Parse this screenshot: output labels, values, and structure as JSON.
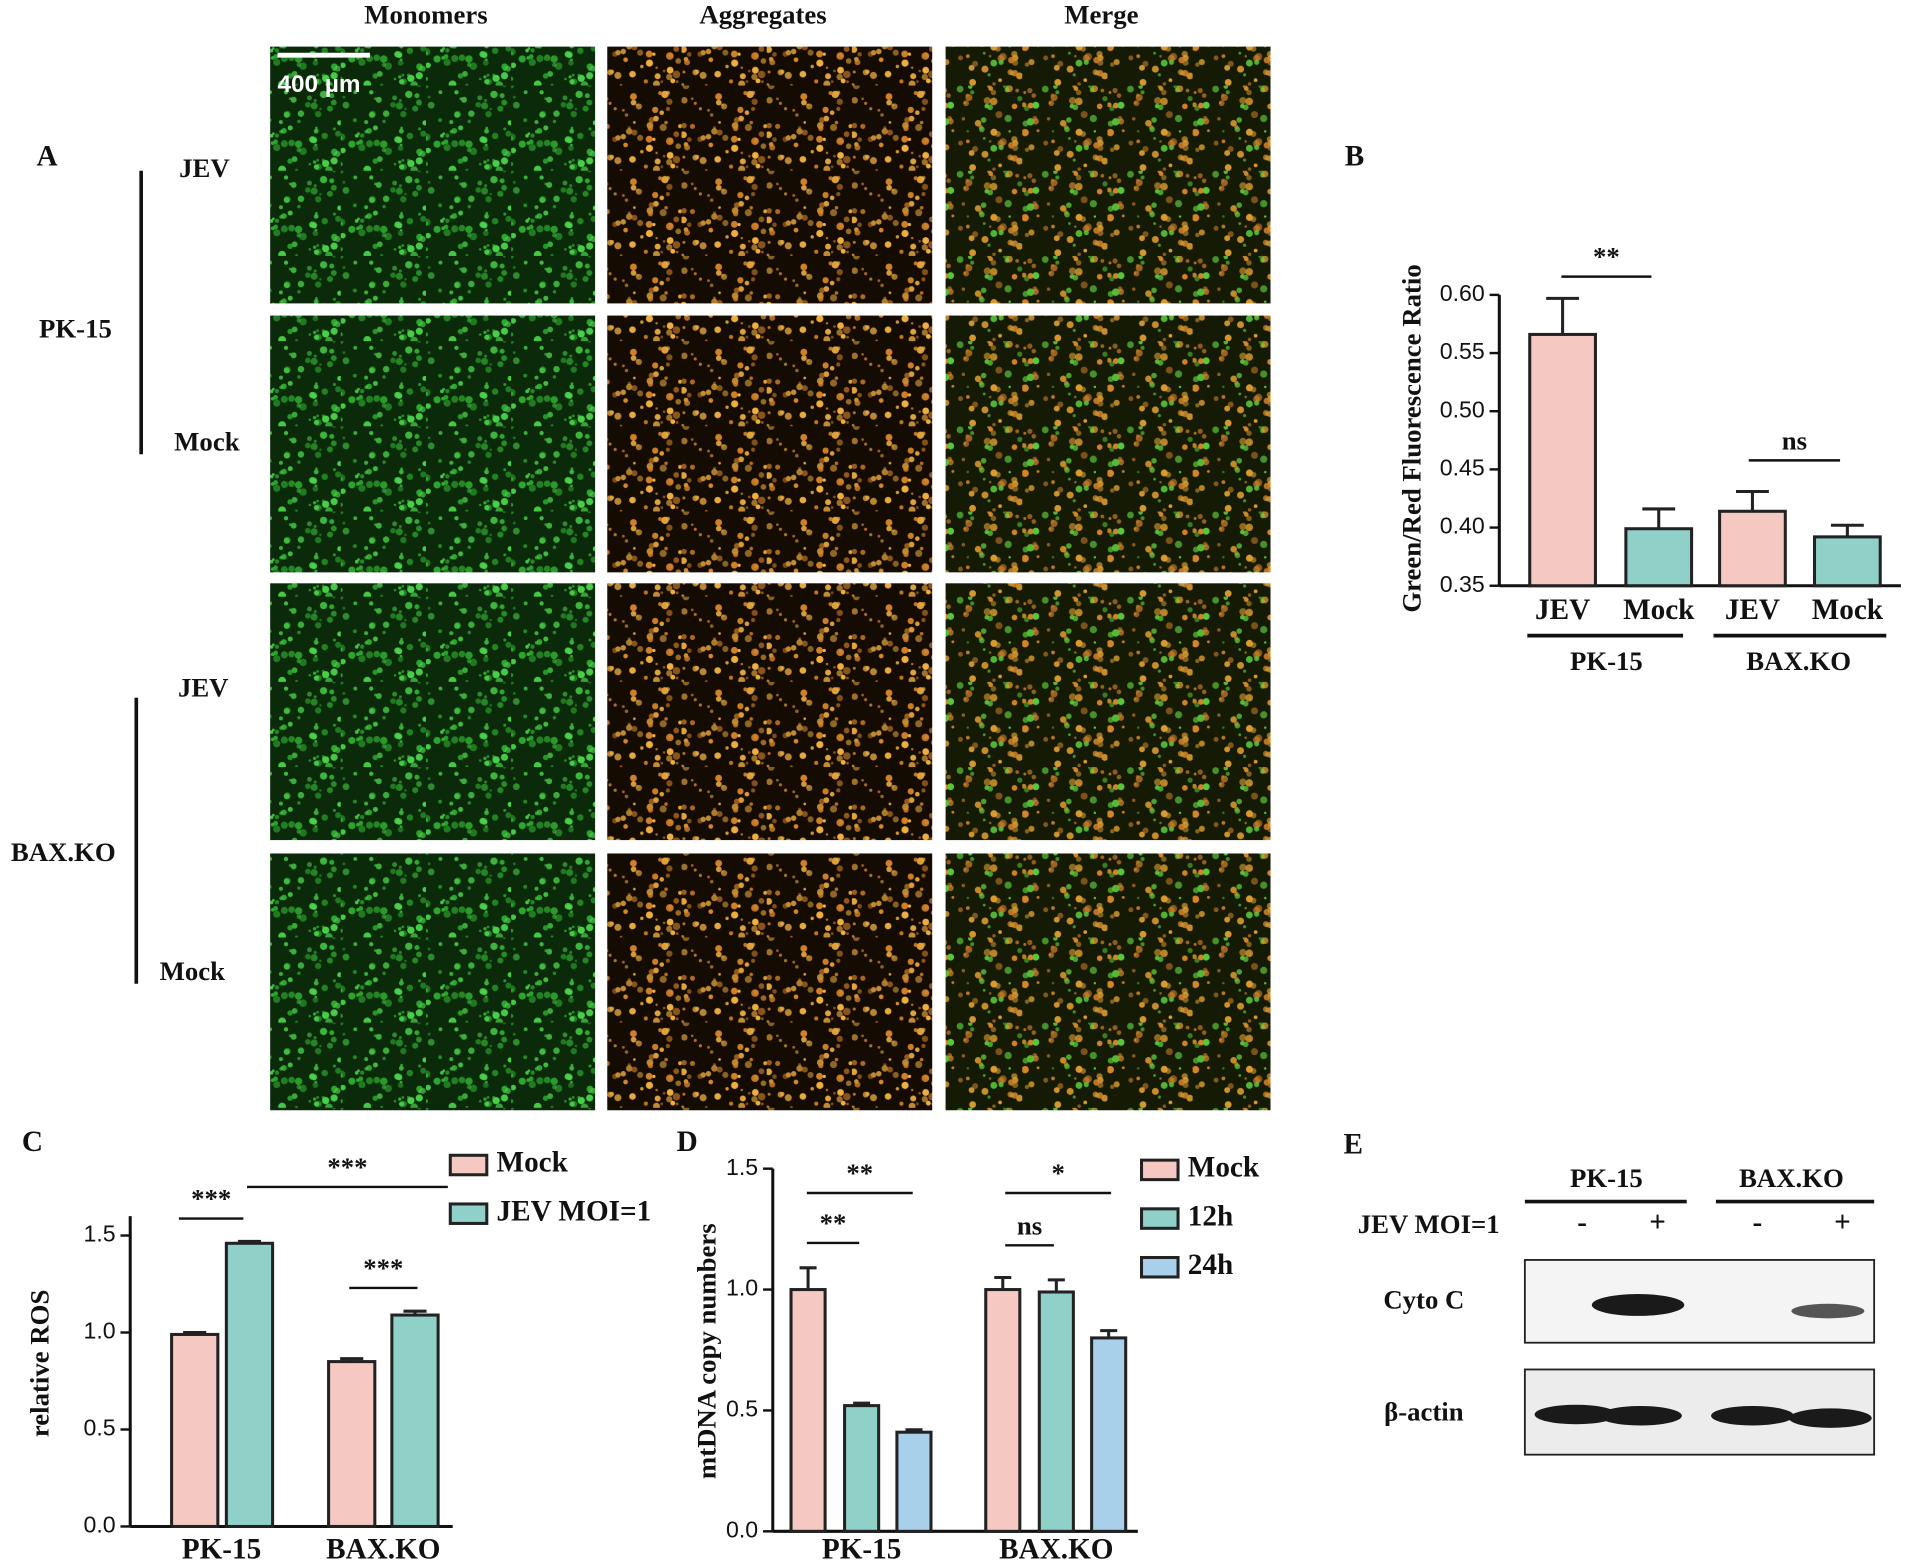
{
  "figure": {
    "panel_labels": [
      "A",
      "B",
      "C",
      "D",
      "E"
    ]
  },
  "microscopy": {
    "columns": [
      "Monomers",
      "Aggregates",
      "Merge"
    ],
    "rows": [
      "JEV",
      "Mock",
      "JEV",
      "Mock"
    ],
    "groups": [
      "PK-15",
      "BAX.KO"
    ],
    "scale_bar": "400 µm"
  },
  "chart_data": [
    {
      "type": "bar",
      "y_label": "Green/Red Fluorescence Ratio",
      "categories": [
        "JEV",
        "Mock",
        "JEV",
        "Mock"
      ],
      "groups": [
        "PK-15",
        "BAX.KO"
      ],
      "values": [
        0.566,
        0.399,
        0.414,
        0.392
      ],
      "errors": [
        0.031,
        0.017,
        0.017,
        0.01
      ],
      "colors": [
        "#f5c8c2",
        "#8fd0c8",
        "#f5c8c2",
        "#8fd0c8"
      ],
      "ylim": [
        0.35,
        0.6
      ],
      "yticks": [
        0.35,
        {
          "value": 0.4,
          "label": "0.40"
        },
        0.45,
        {
          "value": 0.5,
          "label": "0.50"
        },
        0.55,
        {
          "value": 0.6,
          "label": "0.60"
        }
      ],
      "annotations": [
        "**",
        "ns"
      ]
    },
    {
      "type": "grouped_bar",
      "y_label": "relative ROS",
      "categories": [
        "PK-15",
        "BAX.KO"
      ],
      "series": [
        {
          "name": "Mock",
          "color": "#f5c8c2",
          "values": [
            0.99,
            0.85
          ],
          "errors": [
            0.01,
            0.015
          ]
        },
        {
          "name": "JEV MOI=1",
          "color": "#8fd0c8",
          "values": [
            1.46,
            1.09
          ],
          "errors": [
            0.01,
            0.02
          ]
        }
      ],
      "ylim": [
        0,
        1.6
      ],
      "yticks": [
        {
          "value": 0,
          "label": "0.0"
        },
        0.5,
        {
          "value": 1,
          "label": "1.0"
        },
        1.5
      ],
      "annotations": [
        "***",
        "***",
        "***"
      ]
    },
    {
      "type": "grouped_bar",
      "y_label": "mtDNA copy numbers",
      "categories": [
        "PK-15",
        "BAX.KO"
      ],
      "series": [
        {
          "name": "Mock",
          "color": "#f5c8c2",
          "values": [
            1.0,
            1.0
          ],
          "errors": [
            0.09,
            0.05
          ]
        },
        {
          "name": "12h",
          "color": "#8fd0c8",
          "values": [
            0.52,
            0.99
          ],
          "errors": [
            0.01,
            0.05
          ]
        },
        {
          "name": "24h",
          "color": "#a8d0ea",
          "values": [
            0.41,
            0.8
          ],
          "errors": [
            0.01,
            0.03
          ]
        }
      ],
      "ylim": [
        0,
        1.5
      ],
      "yticks": [
        {
          "value": 0,
          "label": "0.0"
        },
        0.5,
        {
          "value": 1,
          "label": "1.0"
        },
        1.5
      ],
      "annotations": [
        "**",
        "**",
        "ns",
        "*"
      ]
    }
  ],
  "western_blot": {
    "groups": [
      "PK-15",
      "BAX.KO"
    ],
    "treatment": "JEV MOI=1",
    "lanes": [
      "-",
      "+",
      "-",
      "+"
    ],
    "rows": [
      "Cyto C",
      "β-actin"
    ]
  }
}
